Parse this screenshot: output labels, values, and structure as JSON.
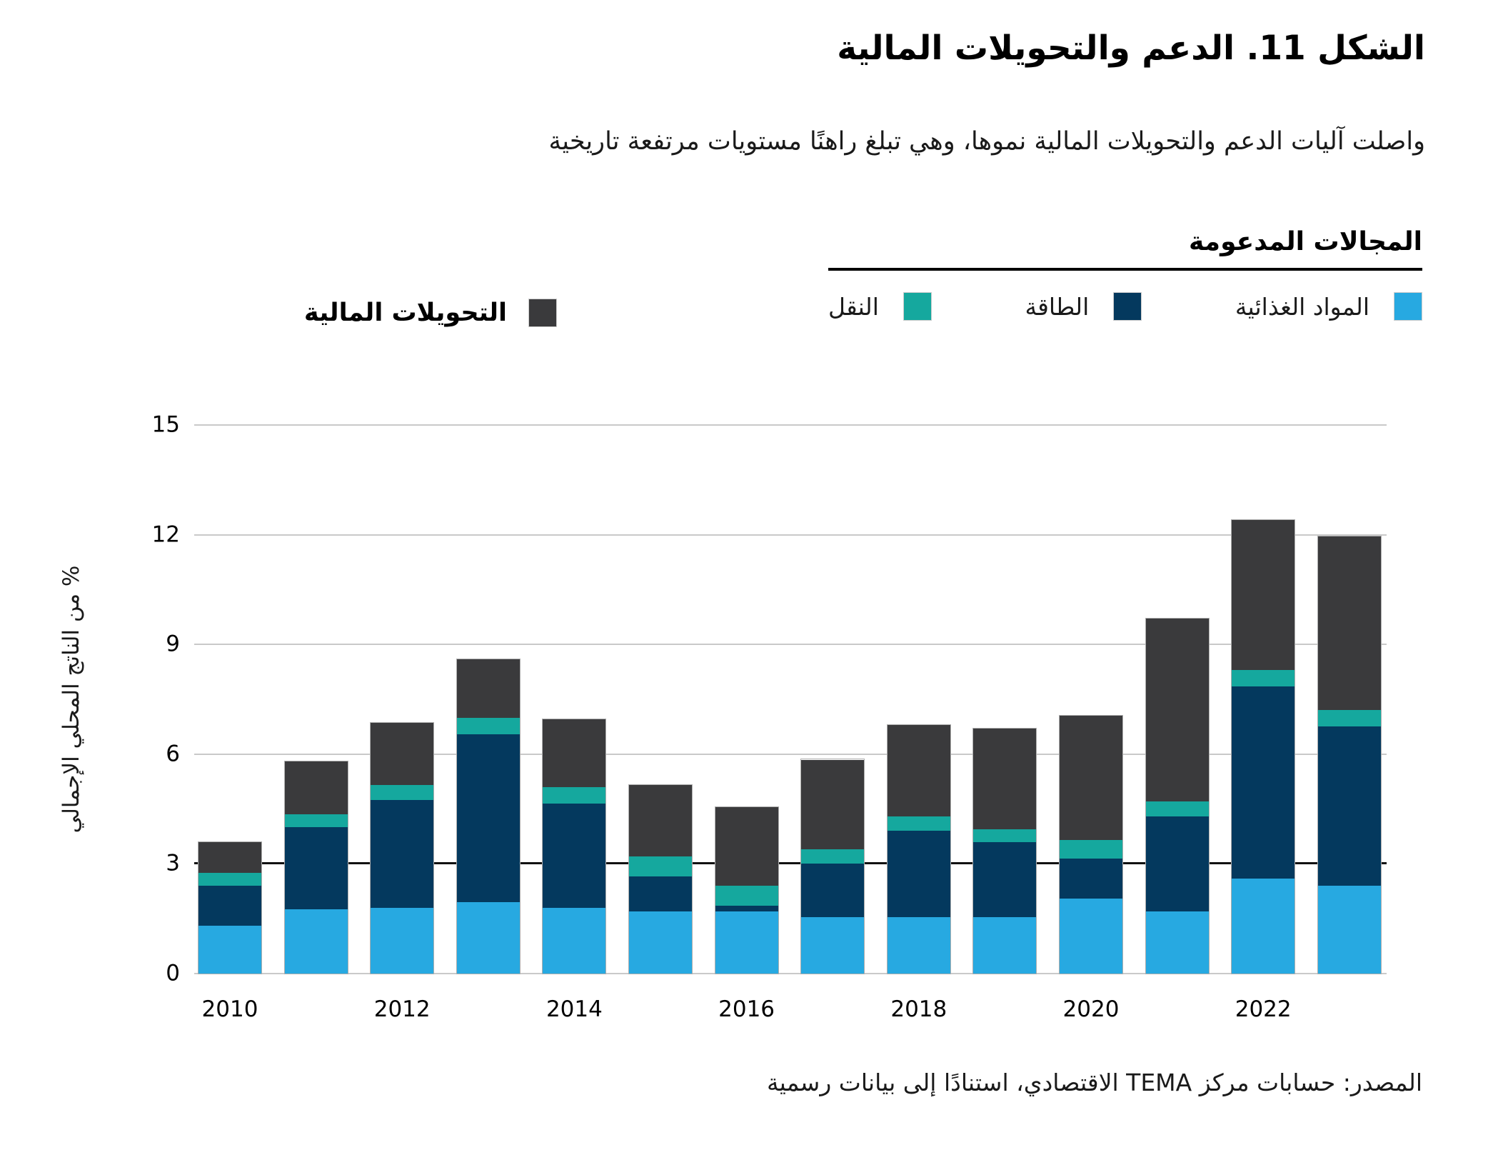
{
  "figure": {
    "title": "الشكل 11. الدعم والتحويلات المالية",
    "subtitle": "واصلت آليات الدعم والتحويلات المالية نموها، وهي تبلغ راهنًا مستويات مرتفعة تاريخية",
    "source": "المصدر: حسابات مركز TEMA الاقتصادي، استنادًا إلى بيانات رسمية"
  },
  "legend": {
    "group_title": "المجالات المدعومة",
    "items": [
      {
        "key": "food",
        "label": "المواد الغذائية",
        "color": "#27A9E1"
      },
      {
        "key": "energy",
        "label": "الطاقة",
        "color": "#04395E"
      },
      {
        "key": "transport",
        "label": "النقل",
        "color": "#15A89E"
      }
    ],
    "transfers": {
      "key": "transfers",
      "label": "التحويلات المالية",
      "color": "#3A3A3C"
    }
  },
  "chart_data": {
    "type": "bar",
    "stacked": true,
    "title": "الشكل 11. الدعم والتحويلات المالية",
    "ylabel": "% من الناتج المحلي الإجمالي",
    "xlabel": "",
    "ylim": [
      0,
      15
    ],
    "yticks": [
      0,
      3,
      6,
      9,
      12,
      15
    ],
    "reference_line_y": 3,
    "grid": true,
    "legend_position": "top",
    "categories": [
      2010,
      2011,
      2012,
      2013,
      2014,
      2015,
      2016,
      2017,
      2018,
      2019,
      2020,
      2021,
      2022,
      2023
    ],
    "xticks_shown": [
      2010,
      2012,
      2014,
      2016,
      2018,
      2020,
      2022
    ],
    "series": [
      {
        "key": "food",
        "name": "المواد الغذائية",
        "color": "#27A9E1",
        "values": [
          1.3,
          1.75,
          1.8,
          1.95,
          1.8,
          1.7,
          1.7,
          1.55,
          1.55,
          1.55,
          2.05,
          1.7,
          2.6,
          2.4
        ]
      },
      {
        "key": "energy",
        "name": "الطاقة",
        "color": "#04395E",
        "values": [
          1.1,
          2.25,
          2.95,
          4.6,
          2.85,
          0.95,
          0.15,
          1.45,
          2.35,
          2.05,
          1.1,
          2.6,
          5.25,
          4.35
        ]
      },
      {
        "key": "transport",
        "name": "النقل",
        "color": "#15A89E",
        "values": [
          0.35,
          0.35,
          0.4,
          0.45,
          0.45,
          0.55,
          0.55,
          0.4,
          0.4,
          0.35,
          0.5,
          0.4,
          0.45,
          0.45
        ]
      },
      {
        "key": "transfers",
        "name": "التحويلات المالية",
        "color": "#3A3A3C",
        "values": [
          0.85,
          1.45,
          1.7,
          1.6,
          1.85,
          1.95,
          2.15,
          2.45,
          2.5,
          2.75,
          3.4,
          5.0,
          4.1,
          4.75
        ]
      }
    ],
    "colors": {
      "food": "#27A9E1",
      "energy": "#04395E",
      "transport": "#15A89E",
      "transfers": "#3A3A3C",
      "gridline": "#C9C9C9",
      "reference_line": "#111111"
    }
  }
}
